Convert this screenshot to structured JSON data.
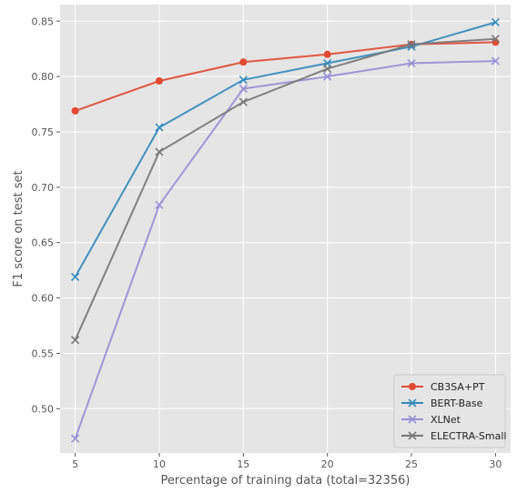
{
  "chart_data": {
    "type": "line",
    "title": "",
    "xlabel": "Percentage of training data (total=32356)",
    "ylabel": "F1 score on test set",
    "x": [
      5,
      10,
      15,
      20,
      25,
      30
    ],
    "x_ticks": [
      "5",
      "10",
      "15",
      "20",
      "25",
      "30"
    ],
    "y_ticks": [
      "0.50",
      "0.55",
      "0.60",
      "0.65",
      "0.70",
      "0.75",
      "0.80",
      "0.85"
    ],
    "xlim": [
      4.1,
      30.9
    ],
    "ylim": [
      0.46,
      0.865
    ],
    "grid": true,
    "legend_position": "bottom-right",
    "series": [
      {
        "name": "CB3SA+PT",
        "marker": "circle",
        "color": "#E24A33",
        "values": [
          0.769,
          0.796,
          0.813,
          0.82,
          0.829,
          0.831
        ]
      },
      {
        "name": "BERT-Base",
        "marker": "x",
        "color": "#348ABD",
        "values": [
          0.619,
          0.754,
          0.797,
          0.812,
          0.827,
          0.849
        ]
      },
      {
        "name": "XLNet",
        "marker": "x",
        "color": "#988ED5",
        "values": [
          0.473,
          0.684,
          0.789,
          0.8,
          0.812,
          0.814
        ]
      },
      {
        "name": "ELECTRA-Small",
        "marker": "x",
        "color": "#777777",
        "values": [
          0.562,
          0.732,
          0.777,
          0.807,
          0.829,
          0.834
        ]
      }
    ]
  }
}
